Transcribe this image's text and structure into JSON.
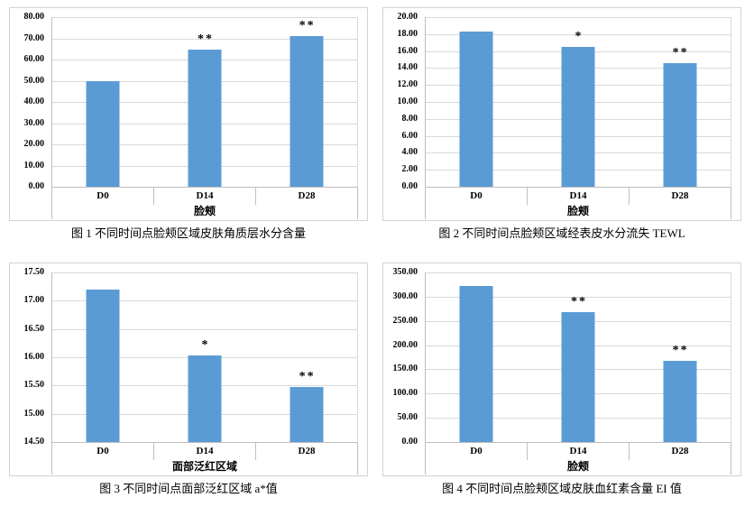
{
  "colors": {
    "bar": "#5b9bd5",
    "gridline": "#d9d9d9",
    "axis": "#bfbfbf",
    "box_border": "#d3d3d3",
    "text": "#000000"
  },
  "chart_data": [
    {
      "type": "bar",
      "caption": "图 1 不同时间点脸颊区域皮肤角质层水分含量",
      "categories": [
        "D0",
        "D14",
        "D28"
      ],
      "values": [
        50.0,
        64.5,
        71.0
      ],
      "annotations": [
        "",
        "**",
        "**"
      ],
      "xlabel": "脸颊",
      "ylabel": "",
      "ylim": [
        0,
        80
      ],
      "ystep": 10,
      "yticks": [
        "0.00",
        "10.00",
        "20.00",
        "30.00",
        "40.00",
        "50.00",
        "60.00",
        "70.00",
        "80.00"
      ],
      "grid": true,
      "legend": false
    },
    {
      "type": "bar",
      "caption": "图 2 不同时间点脸颊区域经表皮水分流失 TEWL",
      "categories": [
        "D0",
        "D14",
        "D28"
      ],
      "values": [
        18.3,
        16.5,
        14.6
      ],
      "annotations": [
        "",
        "*",
        "**"
      ],
      "xlabel": "脸颊",
      "ylabel": "",
      "ylim": [
        0,
        20
      ],
      "ystep": 2,
      "yticks": [
        "0.00",
        "2.00",
        "4.00",
        "6.00",
        "8.00",
        "10.00",
        "12.00",
        "14.00",
        "16.00",
        "18.00",
        "20.00"
      ],
      "grid": true,
      "legend": false
    },
    {
      "type": "bar",
      "caption": "图 3 不同时间点面部泛红区域 a*值",
      "categories": [
        "D0",
        "D14",
        "D28"
      ],
      "values": [
        17.2,
        16.04,
        15.48
      ],
      "annotations": [
        "",
        "*",
        "**"
      ],
      "xlabel": "面部泛红区域",
      "ylabel": "",
      "ylim": [
        14.5,
        17.5
      ],
      "ystep": 0.5,
      "yticks": [
        "14.50",
        "15.00",
        "15.50",
        "16.00",
        "16.50",
        "17.00",
        "17.50"
      ],
      "grid": true,
      "legend": false
    },
    {
      "type": "bar",
      "caption": "图 4 不同时间点脸颊区域皮肤血红素含量 EI 值",
      "categories": [
        "D0",
        "D14",
        "D28"
      ],
      "values": [
        322,
        268,
        168
      ],
      "annotations": [
        "",
        "**",
        "**"
      ],
      "xlabel": "脸颊",
      "ylabel": "",
      "ylim": [
        0,
        350
      ],
      "ystep": 50,
      "yticks": [
        "0.00",
        "50.00",
        "100.00",
        "150.00",
        "200.00",
        "250.00",
        "300.00",
        "350.00"
      ],
      "grid": true,
      "legend": false
    }
  ]
}
